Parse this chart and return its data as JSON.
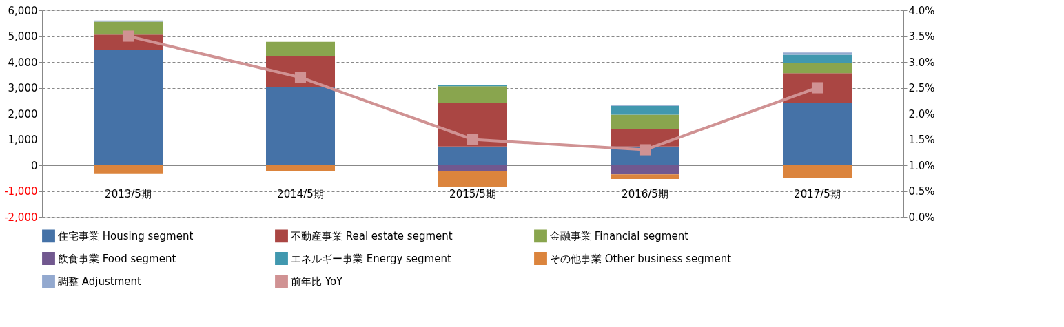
{
  "chart_data": {
    "type": "bar",
    "stacked": true,
    "categories": [
      "2013/5期",
      "2014/5期",
      "2015/5期",
      "2016/5期",
      "2017/5期"
    ],
    "series": [
      {
        "name": "住宅事業  Housing segment",
        "color": "#4572a7",
        "values": [
          4470,
          3020,
          730,
          730,
          2430
        ]
      },
      {
        "name": "不動産事業  Real estate segment",
        "color": "#aa4643",
        "values": [
          590,
          1210,
          1690,
          680,
          1140
        ]
      },
      {
        "name": "金融事業  Financial segment",
        "color": "#89a54e",
        "values": [
          500,
          550,
          640,
          550,
          400
        ]
      },
      {
        "name": "飲食事業  Food segment",
        "color": "#71588f",
        "values": [
          null,
          null,
          -210,
          -350,
          null
        ]
      },
      {
        "name": "エネルギー事業  Energy segment",
        "color": "#4198af",
        "values": [
          null,
          null,
          50,
          340,
          310
        ]
      },
      {
        "name": "その他事業  Other business segment",
        "color": "#db843d",
        "values": [
          -340,
          -210,
          -620,
          -180,
          -480
        ]
      },
      {
        "name": "調整  Adjustment",
        "color": "#93a9cf",
        "values": [
          50,
          null,
          null,
          20,
          90
        ]
      },
      {
        "name": "前年比  YoY",
        "color": "#d09293",
        "type": "line",
        "axis": "y2",
        "marker": "square",
        "values": [
          3.5,
          2.7,
          1.5,
          1.3,
          2.5
        ]
      }
    ],
    "ylim": [
      -2000,
      6000
    ],
    "yticks": [
      {
        "value": -2000,
        "label": "-2,000"
      },
      {
        "value": -1000,
        "label": "-1,000"
      },
      0,
      {
        "value": 1000,
        "label": "1,000"
      },
      {
        "value": 2000,
        "label": "2,000"
      },
      {
        "value": 3000,
        "label": "3,000"
      },
      {
        "value": 4000,
        "label": "4,000"
      },
      {
        "value": 5000,
        "label": "5,000"
      },
      {
        "value": 6000,
        "label": "6,000"
      }
    ],
    "y2lim": [
      0,
      4
    ],
    "y2ticks": [
      {
        "value": 0,
        "label": "0.0%"
      },
      {
        "value": 0.5,
        "label": "0.5%"
      },
      {
        "value": 1,
        "label": "1.0%"
      },
      {
        "value": 1.5,
        "label": "1.5%"
      },
      {
        "value": 2,
        "label": "2.0%"
      },
      {
        "value": 2.5,
        "label": "2.5%"
      },
      {
        "value": 3,
        "label": "3.0%"
      },
      {
        "value": 3.5,
        "label": "3.5%"
      },
      {
        "value": 4,
        "label": "4.0%"
      }
    ],
    "grid": "y",
    "legend": "bottom"
  }
}
